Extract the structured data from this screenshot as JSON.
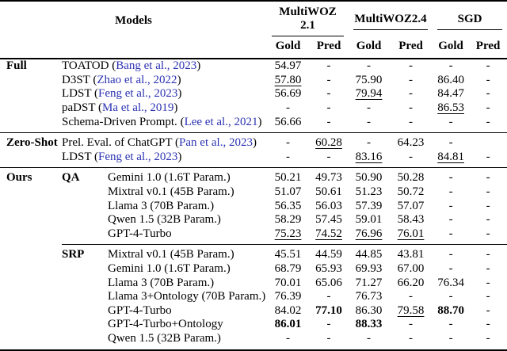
{
  "table": {
    "header": {
      "models_label": "Models",
      "groups": [
        {
          "label": "MultiWOZ 2.1"
        },
        {
          "label": "MultiWOZ2.4"
        },
        {
          "label": "SGD"
        }
      ],
      "subcols": [
        "Gold",
        "Pred"
      ]
    },
    "colors": {
      "citation_link": "#2b32b2",
      "text": "#000000",
      "rules": "#000000",
      "background": "#ffffff"
    },
    "sections": [
      {
        "label": "Full",
        "groups": [
          {
            "label": null,
            "rows": [
              {
                "model": "TOATOD",
                "cite": "Bang et al., 2023",
                "values": [
                  {
                    "v": "54.97"
                  },
                  {
                    "v": "-"
                  },
                  {
                    "v": "-"
                  },
                  {
                    "v": "-"
                  },
                  {
                    "v": "-"
                  },
                  {
                    "v": "-"
                  }
                ]
              },
              {
                "model": "D3ST",
                "cite": "Zhao et al., 2022",
                "values": [
                  {
                    "v": "57.80",
                    "s": "u"
                  },
                  {
                    "v": "-"
                  },
                  {
                    "v": "75.90"
                  },
                  {
                    "v": "-"
                  },
                  {
                    "v": "86.40"
                  },
                  {
                    "v": "-"
                  }
                ]
              },
              {
                "model": "LDST",
                "cite": "Feng et al., 2023",
                "values": [
                  {
                    "v": "56.69"
                  },
                  {
                    "v": "-"
                  },
                  {
                    "v": "79.94",
                    "s": "u"
                  },
                  {
                    "v": "-"
                  },
                  {
                    "v": "84.47"
                  },
                  {
                    "v": "-"
                  }
                ]
              },
              {
                "model": "paDST",
                "cite": "Ma et al., 2019",
                "values": [
                  {
                    "v": "-"
                  },
                  {
                    "v": "-"
                  },
                  {
                    "v": "-"
                  },
                  {
                    "v": "-"
                  },
                  {
                    "v": "86.53",
                    "s": "u"
                  },
                  {
                    "v": "-"
                  }
                ]
              },
              {
                "model": "Schema-Driven Prompt.",
                "cite": "Lee et al., 2021",
                "values": [
                  {
                    "v": "56.66"
                  },
                  {
                    "v": "-"
                  },
                  {
                    "v": "-"
                  },
                  {
                    "v": "-"
                  },
                  {
                    "v": "-"
                  },
                  {
                    "v": "-"
                  }
                ]
              }
            ]
          }
        ]
      },
      {
        "label": "Zero-Shot",
        "groups": [
          {
            "label": null,
            "rows": [
              {
                "model": "Prel. Eval. of ChatGPT",
                "cite": "Pan et al., 2023",
                "values": [
                  {
                    "v": "-"
                  },
                  {
                    "v": "60.28",
                    "s": "u"
                  },
                  {
                    "v": "-"
                  },
                  {
                    "v": "64.23"
                  },
                  {
                    "v": "-"
                  },
                  {
                    "v": ""
                  }
                ]
              },
              {
                "model": "LDST",
                "cite": "Feng et al., 2023",
                "values": [
                  {
                    "v": "-"
                  },
                  {
                    "v": "-"
                  },
                  {
                    "v": "83.16",
                    "s": "u"
                  },
                  {
                    "v": "-"
                  },
                  {
                    "v": "84.81",
                    "s": "u"
                  },
                  {
                    "v": "-"
                  }
                ]
              }
            ]
          }
        ]
      },
      {
        "label": "Ours",
        "groups": [
          {
            "label": "QA",
            "rows": [
              {
                "model": "Gemini 1.0 (1.6T Param.)",
                "cite": null,
                "values": [
                  {
                    "v": "50.21"
                  },
                  {
                    "v": "49.73"
                  },
                  {
                    "v": "50.90"
                  },
                  {
                    "v": "50.28"
                  },
                  {
                    "v": "-"
                  },
                  {
                    "v": "-"
                  }
                ]
              },
              {
                "model": "Mixtral v0.1 (45B Param.)",
                "cite": null,
                "values": [
                  {
                    "v": "51.07"
                  },
                  {
                    "v": "50.61"
                  },
                  {
                    "v": "51.23"
                  },
                  {
                    "v": "50.72"
                  },
                  {
                    "v": "-"
                  },
                  {
                    "v": "-"
                  }
                ]
              },
              {
                "model": "Llama 3 (70B Param.)",
                "cite": null,
                "values": [
                  {
                    "v": "56.35"
                  },
                  {
                    "v": "56.03"
                  },
                  {
                    "v": "57.39"
                  },
                  {
                    "v": "57.07"
                  },
                  {
                    "v": "-"
                  },
                  {
                    "v": "-"
                  }
                ]
              },
              {
                "model": "Qwen 1.5 (32B Param.)",
                "cite": null,
                "values": [
                  {
                    "v": "58.29"
                  },
                  {
                    "v": "57.45"
                  },
                  {
                    "v": "59.01"
                  },
                  {
                    "v": "58.43"
                  },
                  {
                    "v": "-"
                  },
                  {
                    "v": "-"
                  }
                ]
              },
              {
                "model": "GPT-4-Turbo",
                "cite": null,
                "values": [
                  {
                    "v": "75.23",
                    "s": "u"
                  },
                  {
                    "v": "74.52",
                    "s": "u"
                  },
                  {
                    "v": "76.96",
                    "s": "u"
                  },
                  {
                    "v": "76.01",
                    "s": "u"
                  },
                  {
                    "v": "-"
                  },
                  {
                    "v": "-"
                  }
                ]
              }
            ]
          },
          {
            "label": "SRP",
            "rows": [
              {
                "model": "Mixtral v0.1 (45B Param.)",
                "cite": null,
                "values": [
                  {
                    "v": "45.51"
                  },
                  {
                    "v": "44.59"
                  },
                  {
                    "v": "44.85"
                  },
                  {
                    "v": "43.81"
                  },
                  {
                    "v": "-"
                  },
                  {
                    "v": "-"
                  }
                ]
              },
              {
                "model": "Gemini 1.0 (1.6T Param.)",
                "cite": null,
                "values": [
                  {
                    "v": "68.79"
                  },
                  {
                    "v": "65.93"
                  },
                  {
                    "v": "69.93"
                  },
                  {
                    "v": "67.00"
                  },
                  {
                    "v": "-"
                  },
                  {
                    "v": "-"
                  }
                ]
              },
              {
                "model": "Llama 3 (70B Param.)",
                "cite": null,
                "values": [
                  {
                    "v": "70.01"
                  },
                  {
                    "v": "65.06"
                  },
                  {
                    "v": "71.27"
                  },
                  {
                    "v": "66.20"
                  },
                  {
                    "v": "76.34"
                  },
                  {
                    "v": "-"
                  }
                ]
              },
              {
                "model": "Llama 3+Ontology (70B Param.)",
                "cite": null,
                "values": [
                  {
                    "v": "76.39"
                  },
                  {
                    "v": "-"
                  },
                  {
                    "v": "76.73"
                  },
                  {
                    "v": "-"
                  },
                  {
                    "v": "-"
                  },
                  {
                    "v": "-"
                  }
                ]
              },
              {
                "model": "GPT-4-Turbo",
                "cite": null,
                "values": [
                  {
                    "v": "84.02"
                  },
                  {
                    "v": "77.10",
                    "s": "b"
                  },
                  {
                    "v": "86.30"
                  },
                  {
                    "v": "79.58",
                    "s": "u"
                  },
                  {
                    "v": "88.70",
                    "s": "b"
                  },
                  {
                    "v": "-"
                  }
                ]
              },
              {
                "model": "GPT-4-Turbo+Ontology",
                "cite": null,
                "values": [
                  {
                    "v": "86.01",
                    "s": "b"
                  },
                  {
                    "v": "-"
                  },
                  {
                    "v": "88.33",
                    "s": "b"
                  },
                  {
                    "v": "-"
                  },
                  {
                    "v": "-"
                  },
                  {
                    "v": "-"
                  }
                ]
              },
              {
                "model": "Qwen 1.5 (32B Param.)",
                "cite": null,
                "values": [
                  {
                    "v": "-"
                  },
                  {
                    "v": "-"
                  },
                  {
                    "v": "-"
                  },
                  {
                    "v": "-"
                  },
                  {
                    "v": "-"
                  },
                  {
                    "v": "-"
                  }
                ]
              }
            ]
          }
        ]
      }
    ]
  }
}
